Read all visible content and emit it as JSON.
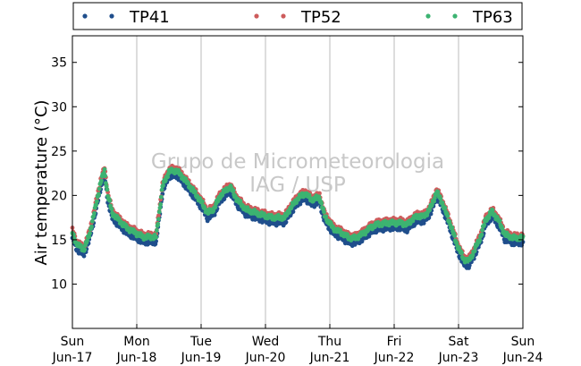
{
  "chart_data": {
    "type": "line",
    "ylabel": "Air temperature (°C)",
    "ylim": [
      5,
      38
    ],
    "yticks": [
      10,
      15,
      20,
      25,
      30,
      35
    ],
    "xlim": [
      0,
      7
    ],
    "xticks": [
      {
        "x": 0,
        "day": "Sun",
        "date": "Jun-17"
      },
      {
        "x": 1,
        "day": "Mon",
        "date": "Jun-18"
      },
      {
        "x": 2,
        "day": "Tue",
        "date": "Jun-19"
      },
      {
        "x": 3,
        "day": "Wed",
        "date": "Jun-20"
      },
      {
        "x": 4,
        "day": "Thu",
        "date": "Jun-21"
      },
      {
        "x": 5,
        "day": "Fri",
        "date": "Jun-22"
      },
      {
        "x": 6,
        "day": "Sat",
        "date": "Jun-23"
      },
      {
        "x": 7,
        "day": "Sun",
        "date": "Jun-24"
      }
    ],
    "grid": "vertical",
    "legend_position": "top",
    "watermark": [
      "Grupo de Micrometeorologia",
      "IAG / USP"
    ],
    "x_units": "days since Sun Jun-17 00:00",
    "base_profile": [
      [
        0.0,
        15.8
      ],
      [
        0.06,
        14.6
      ],
      [
        0.12,
        14.2
      ],
      [
        0.18,
        13.9
      ],
      [
        0.26,
        15.5
      ],
      [
        0.34,
        18.0
      ],
      [
        0.44,
        21.5
      ],
      [
        0.5,
        22.8
      ],
      [
        0.55,
        20.0
      ],
      [
        0.62,
        18.0
      ],
      [
        0.72,
        17.2
      ],
      [
        0.85,
        16.3
      ],
      [
        1.0,
        15.7
      ],
      [
        1.1,
        15.3
      ],
      [
        1.3,
        15.3
      ],
      [
        1.34,
        17.5
      ],
      [
        1.4,
        21.0
      ],
      [
        1.5,
        22.7
      ],
      [
        1.62,
        22.8
      ],
      [
        1.72,
        22.0
      ],
      [
        1.88,
        20.5
      ],
      [
        2.0,
        19.3
      ],
      [
        2.1,
        18.0
      ],
      [
        2.2,
        18.5
      ],
      [
        2.3,
        20.0
      ],
      [
        2.45,
        21.0
      ],
      [
        2.56,
        19.5
      ],
      [
        2.7,
        18.4
      ],
      [
        2.9,
        17.9
      ],
      [
        3.1,
        17.5
      ],
      [
        3.3,
        17.5
      ],
      [
        3.4,
        18.7
      ],
      [
        3.52,
        19.8
      ],
      [
        3.62,
        20.2
      ],
      [
        3.72,
        19.5
      ],
      [
        3.84,
        19.8
      ],
      [
        3.92,
        17.7
      ],
      [
        4.05,
        16.3
      ],
      [
        4.2,
        15.7
      ],
      [
        4.3,
        15.2
      ],
      [
        4.4,
        15.2
      ],
      [
        4.52,
        15.7
      ],
      [
        4.62,
        16.3
      ],
      [
        4.72,
        16.7
      ],
      [
        4.92,
        16.9
      ],
      [
        5.1,
        16.9
      ],
      [
        5.2,
        16.7
      ],
      [
        5.3,
        17.4
      ],
      [
        5.38,
        17.7
      ],
      [
        5.46,
        17.6
      ],
      [
        5.56,
        18.5
      ],
      [
        5.66,
        20.4
      ],
      [
        5.74,
        19.3
      ],
      [
        5.86,
        17.0
      ],
      [
        5.98,
        14.4
      ],
      [
        6.08,
        12.8
      ],
      [
        6.16,
        12.6
      ],
      [
        6.24,
        13.7
      ],
      [
        6.34,
        15.3
      ],
      [
        6.42,
        17.2
      ],
      [
        6.52,
        18.2
      ],
      [
        6.62,
        17.2
      ],
      [
        6.72,
        15.6
      ],
      [
        6.85,
        15.2
      ],
      [
        7.0,
        15.2
      ]
    ],
    "series": [
      {
        "name": "TP41",
        "color": "#1f4e8c",
        "offset": -0.6
      },
      {
        "name": "TP52",
        "color": "#cd5c5c",
        "offset": 0.3
      },
      {
        "name": "TP63",
        "color": "#3cb371",
        "offset": 0.0
      }
    ]
  }
}
